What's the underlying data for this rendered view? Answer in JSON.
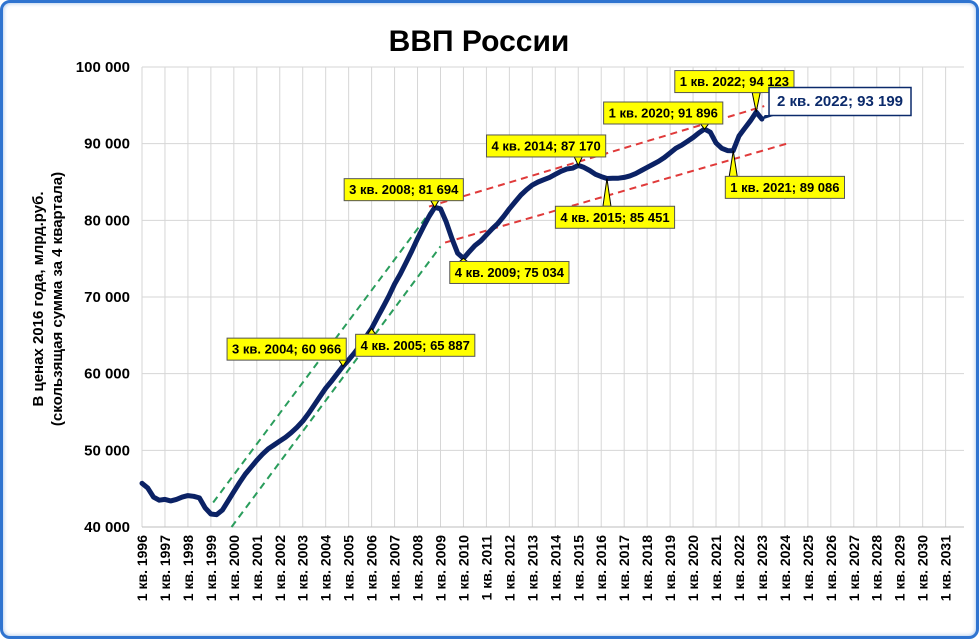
{
  "chart_data": {
    "type": "line",
    "title": "ВВП России",
    "ylabel_line1": "В ценах 2016 года, млрд.руб.",
    "ylabel_line2": "(скользящая сумма за 4 квартала)",
    "ylim": [
      40000,
      100000
    ],
    "yticks": [
      {
        "value": 40000,
        "label": "40 000"
      },
      {
        "value": 50000,
        "label": "50 000"
      },
      {
        "value": 60000,
        "label": "60 000"
      },
      {
        "value": 70000,
        "label": "70 000"
      },
      {
        "value": 80000,
        "label": "80 000"
      },
      {
        "value": 90000,
        "label": "90 000"
      },
      {
        "value": 100000,
        "label": "100 000"
      }
    ],
    "xlim": [
      1996,
      2031.8
    ],
    "xtick_labels": [
      "1 кв. 1996",
      "1 кв. 1997",
      "1 кв. 1998",
      "1 кв. 1999",
      "1 кв. 2000",
      "1 кв. 2001",
      "1 кв. 2002",
      "1 кв. 2003",
      "1 кв. 2004",
      "1 кв. 2005",
      "1 кв. 2006",
      "1 кв. 2007",
      "1 кв. 2008",
      "1 кв. 2009",
      "1 кв. 2010",
      "1 кв. 2011",
      "1 кв. 2012",
      "1 кв. 2013",
      "1 кв. 2014",
      "1 кв. 2015",
      "1 кв. 2016",
      "1 кв. 2017",
      "1 кв. 2018",
      "1 кв. 2019",
      "1 кв. 2020",
      "1 кв. 2021",
      "1 кв. 2022",
      "1 кв. 2023",
      "1 кв. 2024",
      "1 кв. 2025",
      "1 кв. 2026",
      "1 кв. 2027",
      "1 кв. 2028",
      "1 кв. 2029",
      "1 кв. 2030",
      "1 кв. 2031"
    ],
    "grid": true,
    "series": [
      {
        "color": "#0b2265",
        "points": [
          [
            1996.0,
            45700
          ],
          [
            1996.25,
            45100
          ],
          [
            1996.5,
            43900
          ],
          [
            1996.75,
            43500
          ],
          [
            1997.0,
            43600
          ],
          [
            1997.25,
            43400
          ],
          [
            1997.5,
            43600
          ],
          [
            1997.75,
            43900
          ],
          [
            1998.0,
            44100
          ],
          [
            1998.25,
            44000
          ],
          [
            1998.5,
            43800
          ],
          [
            1998.75,
            42500
          ],
          [
            1999.0,
            41700
          ],
          [
            1999.25,
            41600
          ],
          [
            1999.5,
            42200
          ],
          [
            1999.75,
            43400
          ],
          [
            2000.0,
            44600
          ],
          [
            2000.25,
            45800
          ],
          [
            2000.5,
            46900
          ],
          [
            2000.75,
            47800
          ],
          [
            2001.0,
            48700
          ],
          [
            2001.25,
            49500
          ],
          [
            2001.5,
            50200
          ],
          [
            2001.75,
            50700
          ],
          [
            2002.0,
            51200
          ],
          [
            2002.25,
            51700
          ],
          [
            2002.5,
            52300
          ],
          [
            2002.75,
            53000
          ],
          [
            2003.0,
            53800
          ],
          [
            2003.25,
            54800
          ],
          [
            2003.5,
            55900
          ],
          [
            2003.75,
            57000
          ],
          [
            2004.0,
            58100
          ],
          [
            2004.25,
            59000
          ],
          [
            2004.5,
            60000
          ],
          [
            2004.75,
            60966
          ],
          [
            2005.0,
            61800
          ],
          [
            2005.25,
            62700
          ],
          [
            2005.5,
            63700
          ],
          [
            2005.75,
            64800
          ],
          [
            2006.0,
            65887
          ],
          [
            2006.25,
            67300
          ],
          [
            2006.5,
            68700
          ],
          [
            2006.75,
            70100
          ],
          [
            2007.0,
            71700
          ],
          [
            2007.25,
            73000
          ],
          [
            2007.5,
            74500
          ],
          [
            2007.75,
            76000
          ],
          [
            2008.0,
            77600
          ],
          [
            2008.25,
            79100
          ],
          [
            2008.5,
            80500
          ],
          [
            2008.75,
            81694
          ],
          [
            2009.0,
            81500
          ],
          [
            2009.25,
            79800
          ],
          [
            2009.5,
            77600
          ],
          [
            2009.75,
            75700
          ],
          [
            2010.0,
            75034
          ],
          [
            2010.25,
            75900
          ],
          [
            2010.5,
            76700
          ],
          [
            2010.75,
            77300
          ],
          [
            2011.0,
            78100
          ],
          [
            2011.25,
            78900
          ],
          [
            2011.5,
            79600
          ],
          [
            2011.75,
            80500
          ],
          [
            2012.0,
            81500
          ],
          [
            2012.25,
            82400
          ],
          [
            2012.5,
            83300
          ],
          [
            2012.75,
            84000
          ],
          [
            2013.0,
            84600
          ],
          [
            2013.25,
            85000
          ],
          [
            2013.5,
            85300
          ],
          [
            2013.75,
            85600
          ],
          [
            2014.0,
            86000
          ],
          [
            2014.25,
            86400
          ],
          [
            2014.5,
            86700
          ],
          [
            2014.75,
            86800
          ],
          [
            2015.0,
            87170
          ],
          [
            2015.25,
            86900
          ],
          [
            2015.5,
            86500
          ],
          [
            2015.75,
            86000
          ],
          [
            2016.0,
            85700
          ],
          [
            2016.25,
            85451
          ],
          [
            2016.5,
            85500
          ],
          [
            2016.75,
            85500
          ],
          [
            2017.0,
            85600
          ],
          [
            2017.25,
            85800
          ],
          [
            2017.5,
            86100
          ],
          [
            2017.75,
            86500
          ],
          [
            2018.0,
            86900
          ],
          [
            2018.25,
            87300
          ],
          [
            2018.5,
            87700
          ],
          [
            2018.75,
            88200
          ],
          [
            2019.0,
            88800
          ],
          [
            2019.25,
            89400
          ],
          [
            2019.5,
            89800
          ],
          [
            2019.75,
            90300
          ],
          [
            2020.0,
            90800
          ],
          [
            2020.25,
            91400
          ],
          [
            2020.5,
            91896
          ],
          [
            2020.75,
            91500
          ],
          [
            2021.0,
            90100
          ],
          [
            2021.25,
            89400
          ],
          [
            2021.5,
            89100
          ],
          [
            2021.75,
            89086
          ],
          [
            2022.0,
            91000
          ],
          [
            2022.25,
            92000
          ],
          [
            2022.5,
            93000
          ],
          [
            2022.75,
            94123
          ],
          [
            2023.0,
            93199
          ]
        ]
      }
    ],
    "trend_lines": [
      {
        "color": "#2a9d5c",
        "from": [
          1999.1,
          43200
        ],
        "to": [
          2008.7,
          81700
        ]
      },
      {
        "color": "#2a9d5c",
        "from": [
          1999.9,
          40000
        ],
        "to": [
          2009.0,
          76600
        ]
      },
      {
        "color": "#e03a3a",
        "from": [
          2008.5,
          81800
        ],
        "to": [
          2023.1,
          94900
        ]
      },
      {
        "color": "#e03a3a",
        "from": [
          2009.2,
          77100
        ],
        "to": [
          2024.2,
          90100
        ]
      }
    ],
    "annotations": [
      {
        "text": "3 кв. 2008; 81 694",
        "point": [
          2008.75,
          81694
        ],
        "label_at": [
          2007.4,
          84000
        ],
        "style": "yellow"
      },
      {
        "text": "3 кв. 2004; 60 966",
        "point": [
          2004.75,
          60966
        ],
        "label_at": [
          2002.3,
          63200
        ],
        "style": "yellow"
      },
      {
        "text": "4 кв. 2005; 65 887",
        "point": [
          2006.0,
          65887
        ],
        "label_at": [
          2007.9,
          63700
        ],
        "style": "yellow"
      },
      {
        "text": "4 кв. 2009; 75 034",
        "point": [
          2010.0,
          75034
        ],
        "label_at": [
          2012.0,
          73200
        ],
        "style": "yellow"
      },
      {
        "text": "4 кв. 2014; 87 170",
        "point": [
          2015.0,
          87170
        ],
        "label_at": [
          2013.6,
          89700
        ],
        "style": "yellow"
      },
      {
        "text": "4 кв. 2015; 85 451",
        "point": [
          2016.25,
          85451
        ],
        "label_at": [
          2016.6,
          80400
        ],
        "style": "yellow"
      },
      {
        "text": "1 кв. 2020; 91 896",
        "point": [
          2020.5,
          91896
        ],
        "label_at": [
          2018.7,
          94000
        ],
        "style": "yellow"
      },
      {
        "text": "1 кв. 2021; 89 086",
        "point": [
          2021.75,
          89086
        ],
        "label_at": [
          2024.0,
          84300
        ],
        "style": "yellow"
      },
      {
        "text": "1 кв. 2022; 94 123",
        "point": [
          2022.75,
          94123
        ],
        "label_at": [
          2021.8,
          98100
        ],
        "style": "yellow"
      },
      {
        "text": "2 кв. 2022; 93 199",
        "point": [
          2023.0,
          93199
        ],
        "label_at": [
          2026.4,
          95500
        ],
        "style": "white"
      }
    ]
  }
}
